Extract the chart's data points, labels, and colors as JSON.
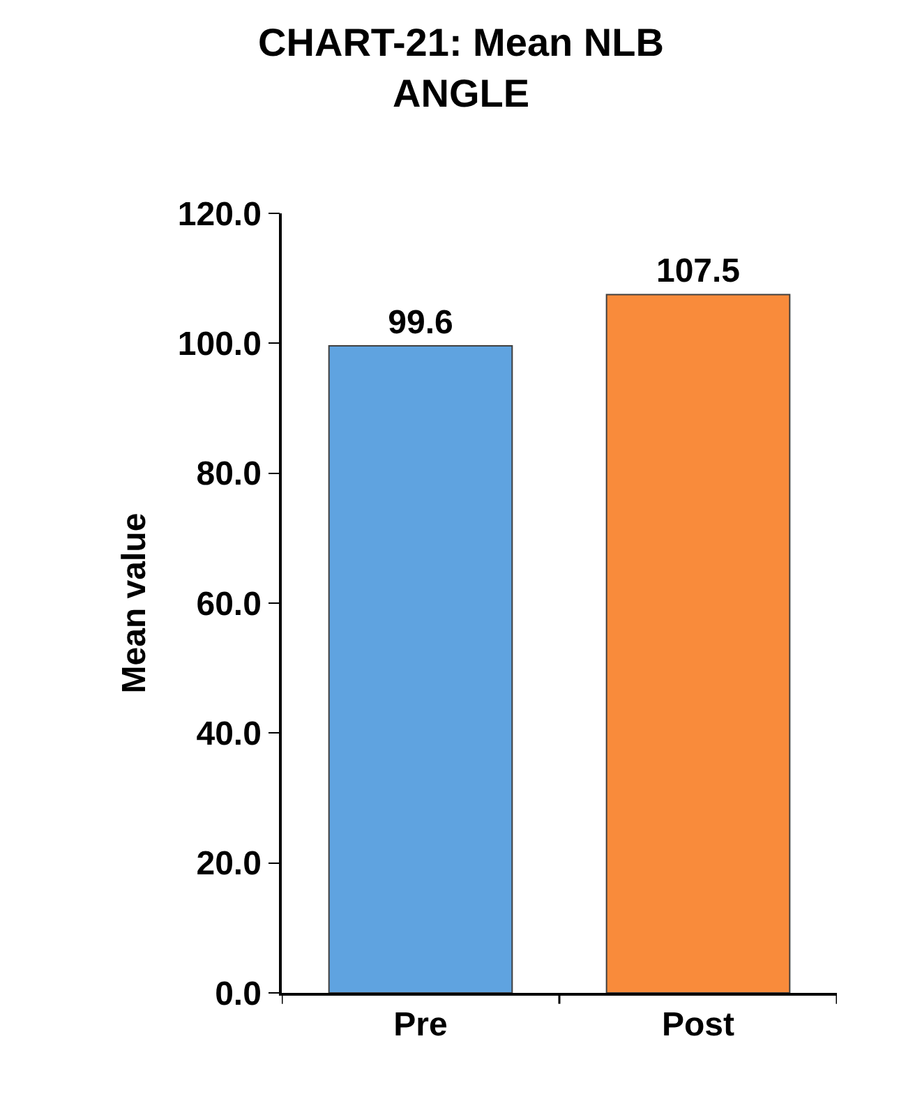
{
  "chart_data": {
    "type": "bar",
    "title": "CHART-21: Mean NLB ANGLE",
    "ylabel": "Mean value",
    "categories": [
      "Pre",
      "Post"
    ],
    "values": [
      99.6,
      107.5
    ],
    "colors": [
      "#5fa3e0",
      "#f98b3b"
    ],
    "ylim": [
      0,
      120
    ],
    "yticks": [
      {
        "value": 0,
        "label": "0.0"
      },
      {
        "value": 20,
        "label": "20.0"
      },
      {
        "value": 40,
        "label": "40.0"
      },
      {
        "value": 60,
        "label": "60.0"
      },
      {
        "value": 80,
        "label": "80.0"
      },
      {
        "value": 100,
        "label": "100.0"
      },
      {
        "value": 120,
        "label": "120.0"
      }
    ],
    "data_labels": true
  }
}
